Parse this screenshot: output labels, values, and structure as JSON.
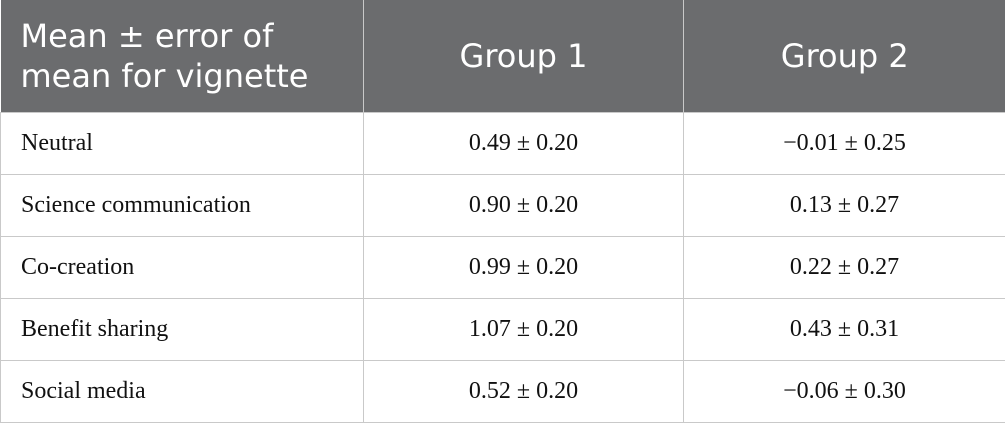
{
  "table": {
    "header": [
      "Mean ± error of mean for vignette",
      "Group 1",
      "Group 2"
    ],
    "rows": [
      [
        "Neutral",
        "0.49 ± 0.20",
        "−0.01 ± 0.25"
      ],
      [
        "Science communication",
        "0.90 ± 0.20",
        "0.13 ± 0.27"
      ],
      [
        "Co-creation",
        "0.99 ± 0.20",
        "0.22 ± 0.27"
      ],
      [
        "Benefit sharing",
        "1.07 ± 0.20",
        "0.43 ± 0.31"
      ],
      [
        "Social media",
        "0.52 ± 0.20",
        "−0.06 ± 0.30"
      ]
    ]
  }
}
